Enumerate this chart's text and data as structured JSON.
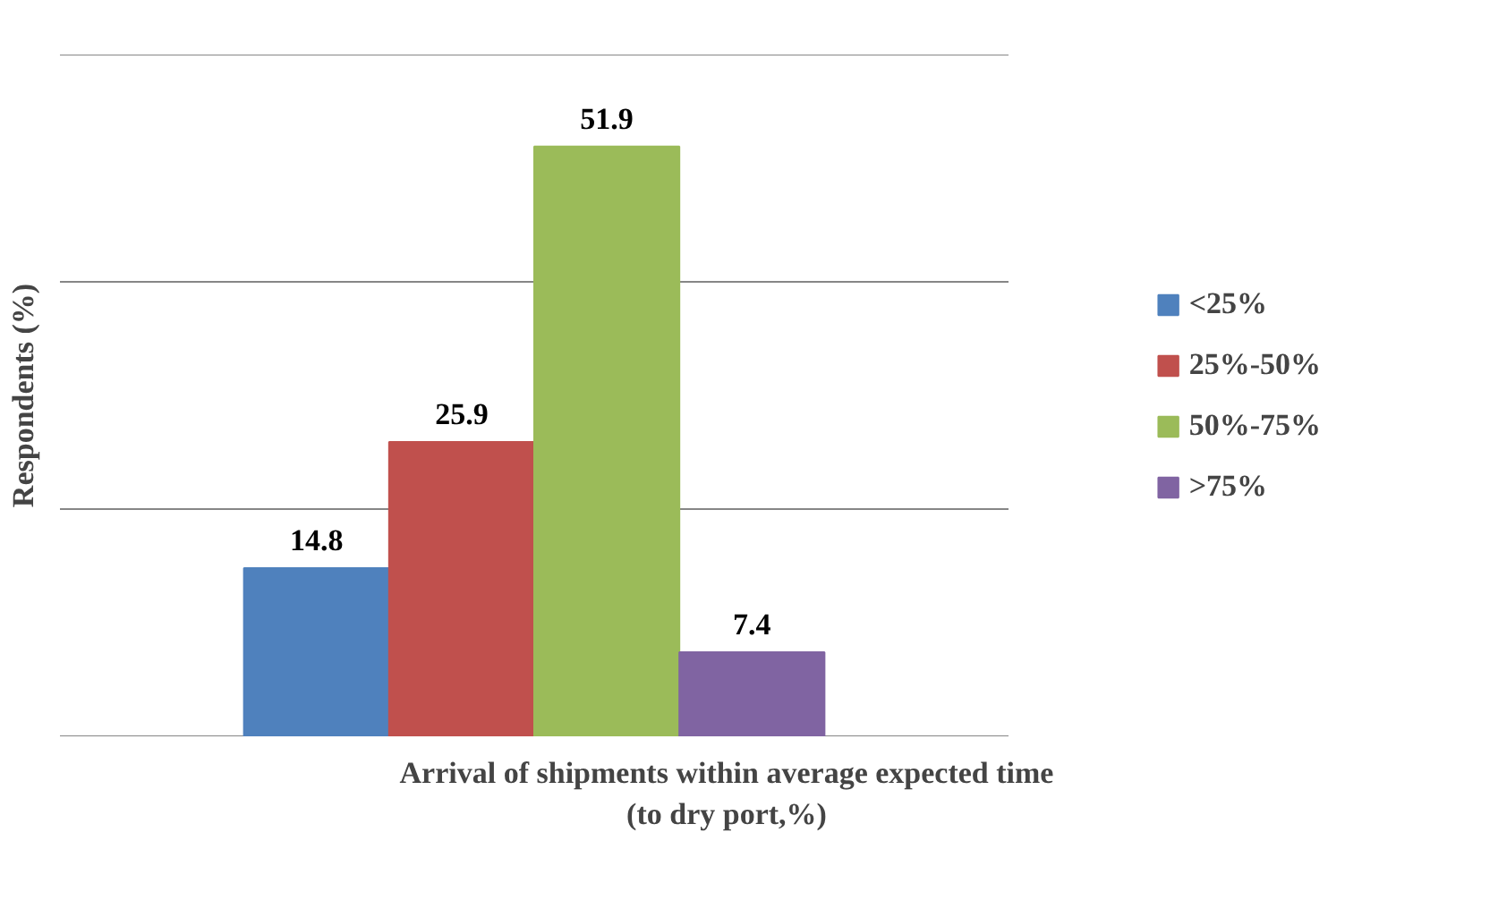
{
  "chart_data": {
    "type": "bar",
    "xlabel": "Arrival of shipments within average expected time (to dry port,%)",
    "ylabel": "Respondents (%)",
    "categories": [
      null
    ],
    "series": [
      {
        "name": "<25%",
        "color": "#4f81bd",
        "values": [
          14.8
        ]
      },
      {
        "name": "25%-50%",
        "color": "#c0504d",
        "values": [
          25.9
        ]
      },
      {
        "name": "50%-75%",
        "color": "#9bbb59",
        "values": [
          51.9
        ]
      },
      {
        "name": ">75%",
        "color": "#8064a2",
        "values": [
          7.4
        ]
      }
    ],
    "ylim": [
      0,
      60
    ],
    "yticks": [
      0,
      20,
      40,
      60
    ],
    "grid": "y",
    "legend": "right",
    "tick_labels": false,
    "data_labels": true
  }
}
